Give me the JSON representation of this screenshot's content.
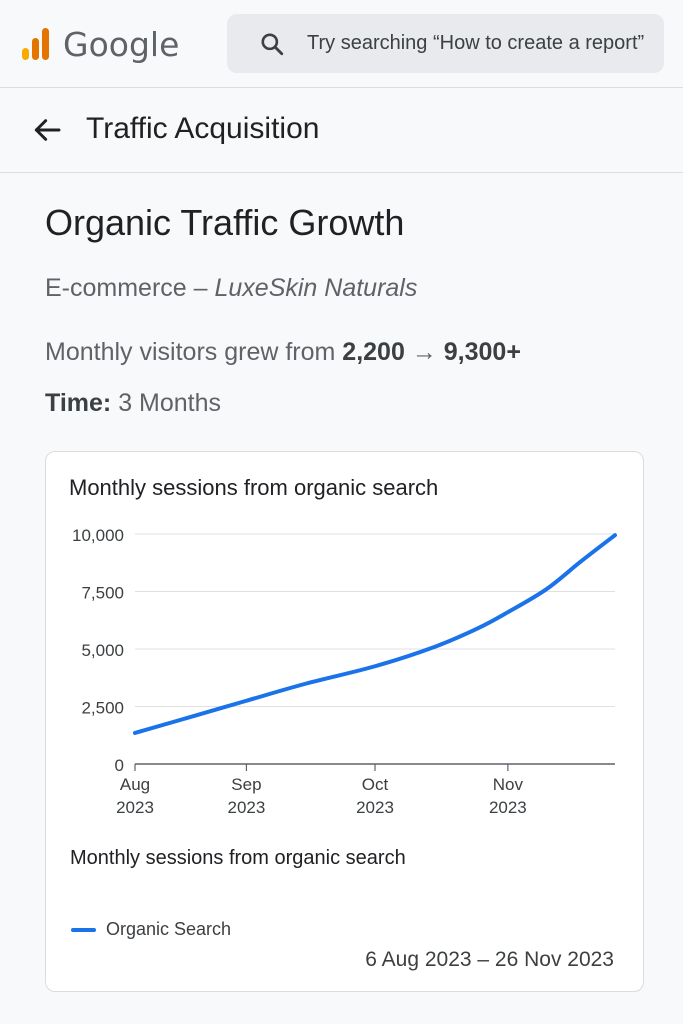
{
  "header": {
    "brand": "Google",
    "search_placeholder": "Try searching “How to create a report”",
    "colors": {
      "logo_bar_1": "#f9ab00",
      "logo_bar_2": "#e37400",
      "logo_bar_3": "#e37400"
    },
    "icons": {
      "logo": "analytics-logo-icon",
      "search": "search-icon"
    }
  },
  "pagebar": {
    "title": "Traffic Acquisition",
    "icons": {
      "back": "arrow-back-icon"
    }
  },
  "content": {
    "heading": "Organic Traffic Growth",
    "subtitle_prefix": "E-commerce – ",
    "subtitle_brand": "LuxeSkin Naturals",
    "growth_prefix": "Monthly visitors grew from ",
    "growth_from": "2,200",
    "growth_arrow": "→",
    "growth_to": "9,300+",
    "time_label": "Time:",
    "time_value": "3 Months"
  },
  "card": {
    "title": "Monthly sessions from organic search",
    "legend_title": "Monthly sessions from organic search",
    "legend_item": "Organic Search",
    "date_range": "6 Aug 2023 – 26 Nov 2023"
  },
  "chart_data": {
    "type": "line",
    "title": "Monthly sessions from organic search",
    "y_ticks": [
      {
        "value": 0,
        "label": "0"
      },
      {
        "value": 2500,
        "label": "2,500"
      },
      {
        "value": 5000,
        "label": "5,000"
      },
      {
        "value": 7500,
        "label": "7,500"
      },
      {
        "value": 10000,
        "label": "10,000"
      }
    ],
    "x_ticks": [
      {
        "date": "2023-08-06",
        "line1": "Aug",
        "line2": "2023"
      },
      {
        "date": "2023-09-01",
        "line1": "Sep",
        "line2": "2023"
      },
      {
        "date": "2023-10-01",
        "line1": "Oct",
        "line2": "2023"
      },
      {
        "date": "2023-11-01",
        "line1": "Nov",
        "line2": "2023"
      }
    ],
    "x_range": [
      "2023-08-06",
      "2023-11-26"
    ],
    "ylim": [
      0,
      10000
    ],
    "grid": true,
    "series": [
      {
        "name": "Organic Search",
        "color": "#1a73e8",
        "points": [
          {
            "x": "2023-08-06",
            "y": 1350
          },
          {
            "x": "2023-08-20",
            "y": 2100
          },
          {
            "x": "2023-09-01",
            "y": 2750
          },
          {
            "x": "2023-09-15",
            "y": 3500
          },
          {
            "x": "2023-10-01",
            "y": 4250
          },
          {
            "x": "2023-10-15",
            "y": 5100
          },
          {
            "x": "2023-10-25",
            "y": 5900
          },
          {
            "x": "2023-11-01",
            "y": 6600
          },
          {
            "x": "2023-11-10",
            "y": 7600
          },
          {
            "x": "2023-11-18",
            "y": 8800
          },
          {
            "x": "2023-11-26",
            "y": 9950
          }
        ]
      }
    ]
  }
}
